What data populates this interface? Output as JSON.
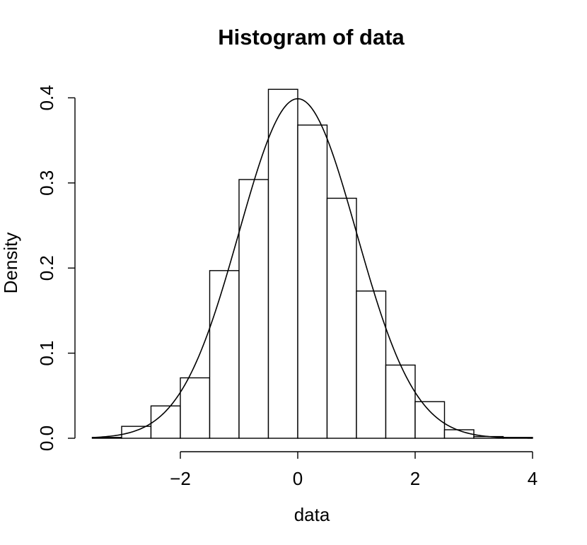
{
  "chart_data": {
    "type": "bar",
    "title": "Histogram of data",
    "xlabel": "data",
    "ylabel": "Density",
    "xlim": [
      -3.5,
      4
    ],
    "ylim": [
      0,
      0.4
    ],
    "x_ticks": [
      -2,
      0,
      2,
      4
    ],
    "x_tick_labels": [
      "−2",
      "0",
      "2",
      "4"
    ],
    "y_ticks": [
      0.0,
      0.1,
      0.2,
      0.3,
      0.4
    ],
    "y_tick_labels": [
      "0.0",
      "0.1",
      "0.2",
      "0.3",
      "0.4"
    ],
    "bins": [
      {
        "x0": -3.5,
        "x1": -3.0,
        "density": 0.001
      },
      {
        "x0": -3.0,
        "x1": -2.5,
        "density": 0.014
      },
      {
        "x0": -2.5,
        "x1": -2.0,
        "density": 0.038
      },
      {
        "x0": -2.0,
        "x1": -1.5,
        "density": 0.071
      },
      {
        "x0": -1.5,
        "x1": -1.0,
        "density": 0.197
      },
      {
        "x0": -1.0,
        "x1": -0.5,
        "density": 0.304
      },
      {
        "x0": -0.5,
        "x1": 0.0,
        "density": 0.41
      },
      {
        "x0": 0.0,
        "x1": 0.5,
        "density": 0.368
      },
      {
        "x0": 0.5,
        "x1": 1.0,
        "density": 0.282
      },
      {
        "x0": 1.0,
        "x1": 1.5,
        "density": 0.173
      },
      {
        "x0": 1.5,
        "x1": 2.0,
        "density": 0.086
      },
      {
        "x0": 2.0,
        "x1": 2.5,
        "density": 0.043
      },
      {
        "x0": 2.5,
        "x1": 3.0,
        "density": 0.01
      },
      {
        "x0": 3.0,
        "x1": 3.5,
        "density": 0.002
      },
      {
        "x0": 3.5,
        "x1": 4.0,
        "density": 0.001
      }
    ],
    "overlay_curve": {
      "type": "normal_density",
      "mean": 0,
      "sd": 1
    },
    "grid": false,
    "colors": {
      "bar_fill": "#ffffff",
      "bar_stroke": "#000000",
      "curve": "#000000"
    }
  }
}
